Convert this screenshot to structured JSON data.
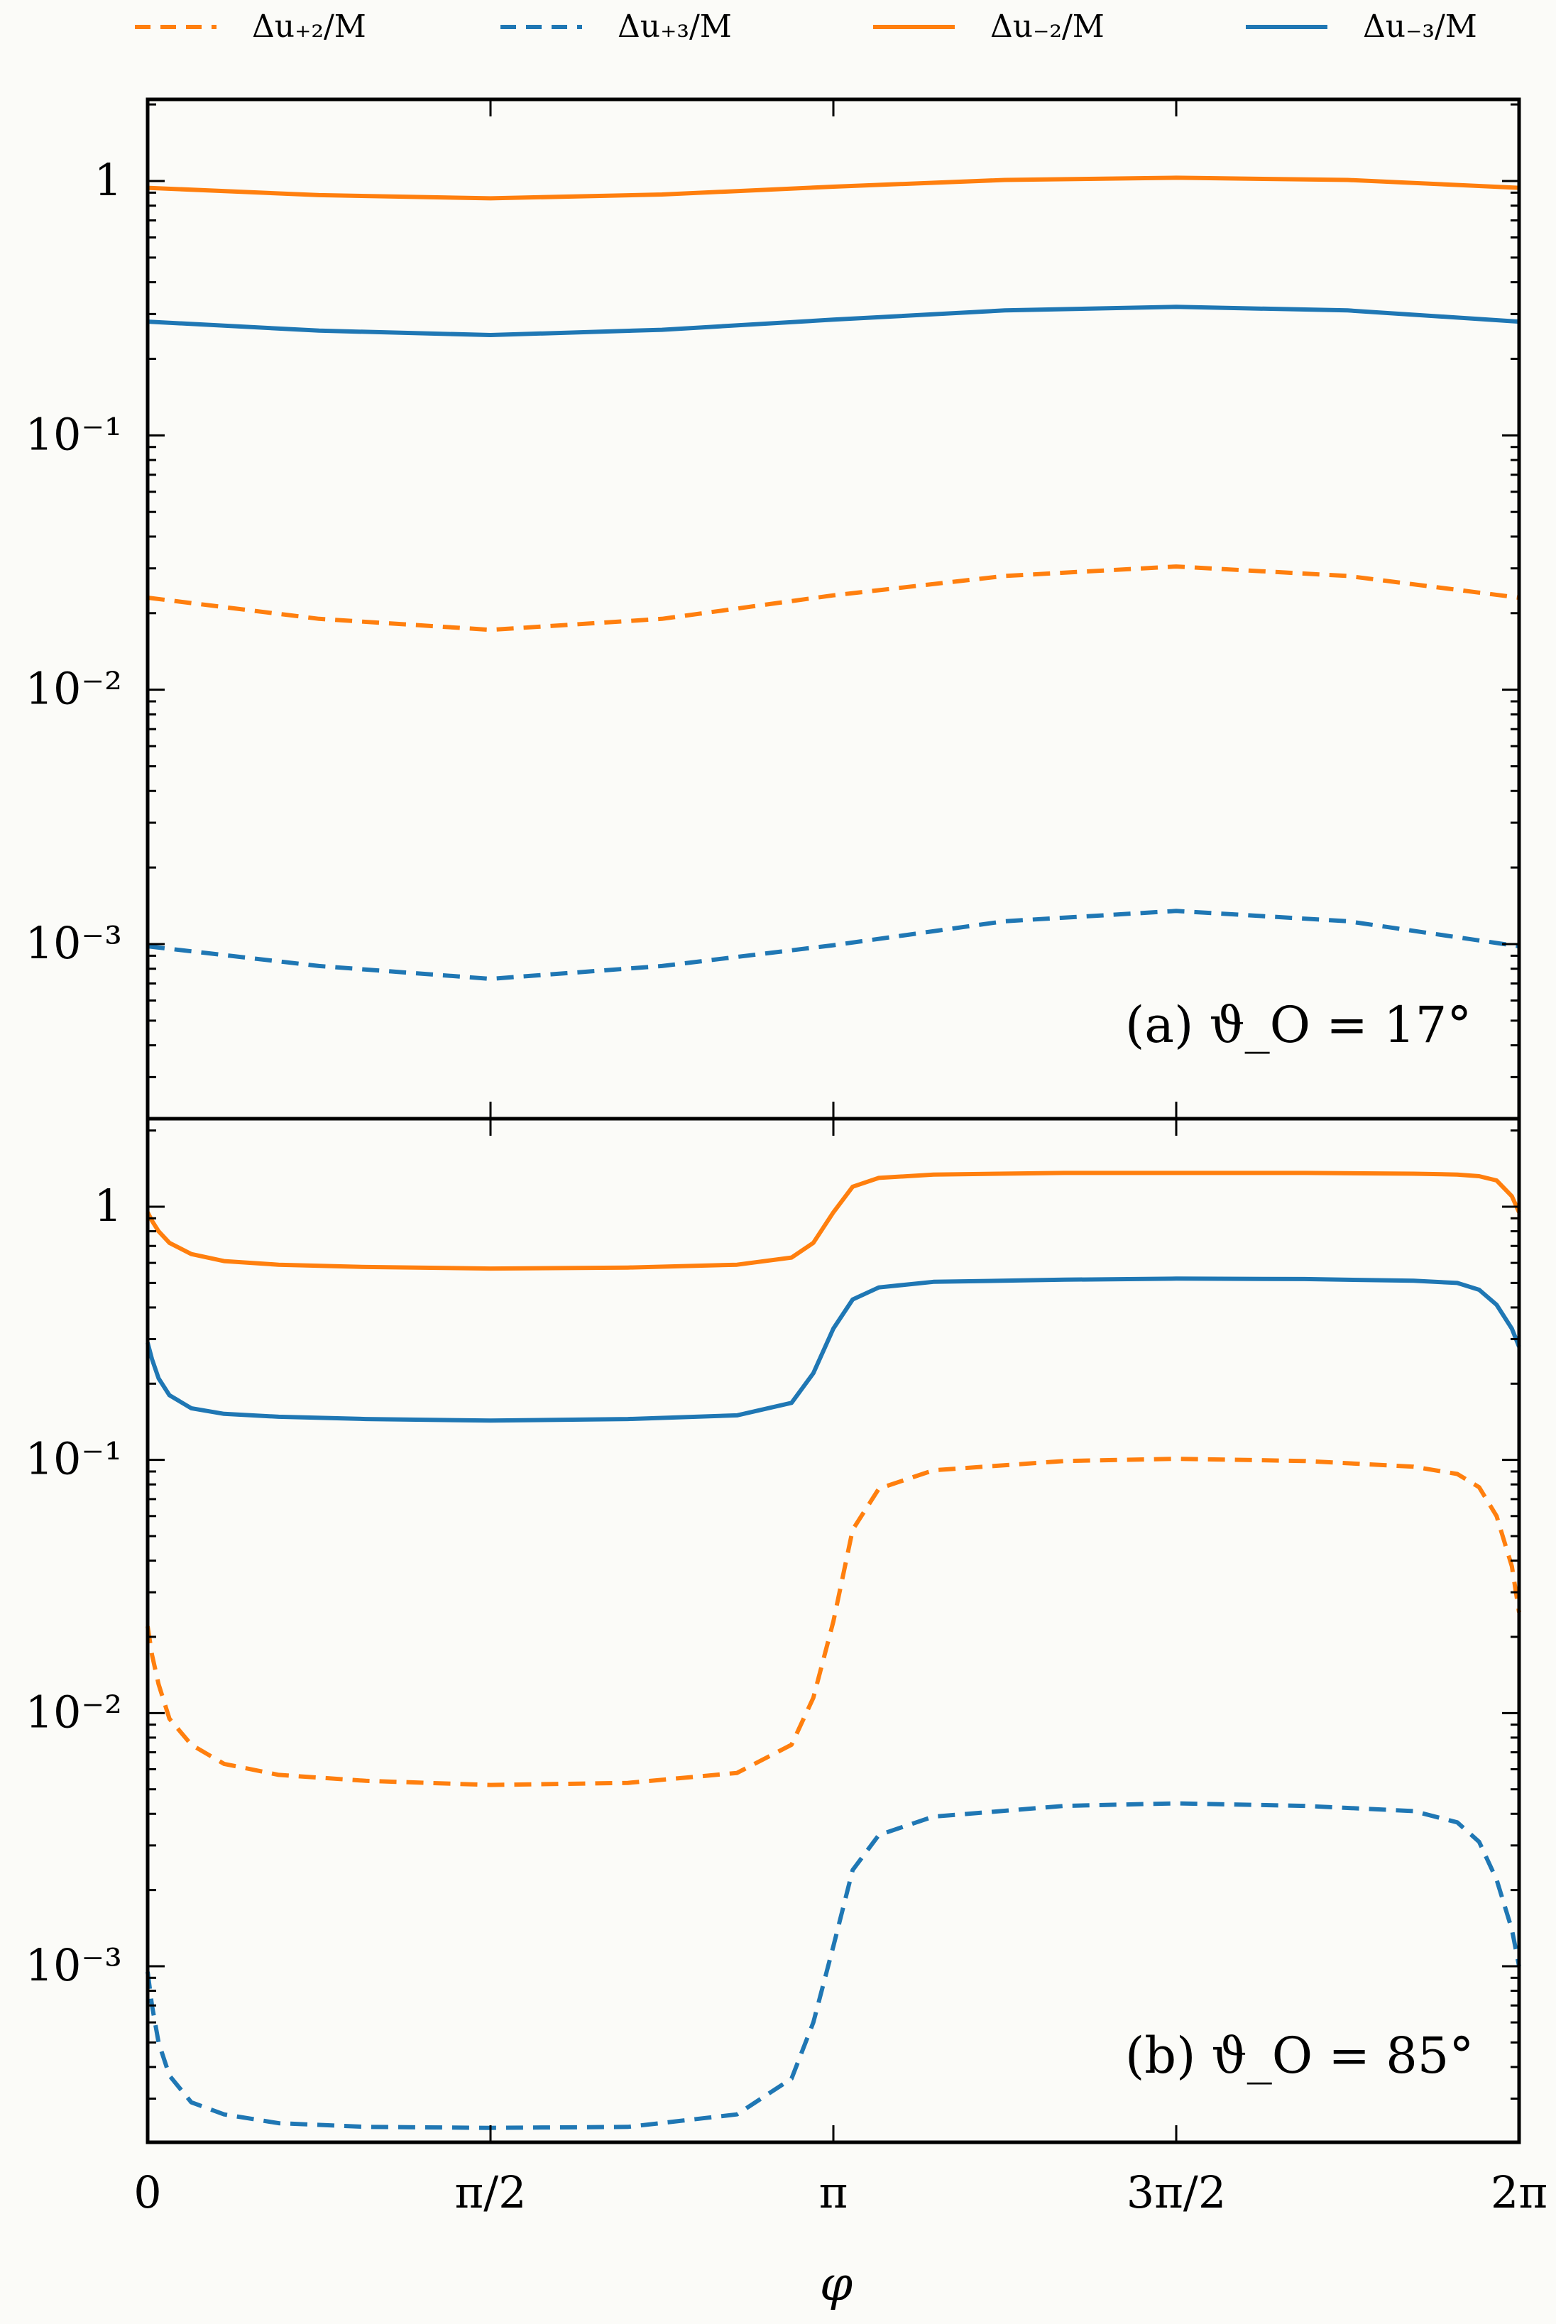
{
  "legend": {
    "placement": "top",
    "entries": [
      {
        "label": "Δu₊₂/M",
        "color": "#ff7f0e",
        "style": "dashed"
      },
      {
        "label": "Δu₊₃/M",
        "color": "#1f77b4",
        "style": "dashed"
      },
      {
        "label": "Δu₋₂/M",
        "color": "#ff7f0e",
        "style": "solid"
      },
      {
        "label": "Δu₋₃/M",
        "color": "#1f77b4",
        "style": "solid"
      }
    ]
  },
  "xlabel": "φ",
  "x_ticks": [
    "0",
    "π/2",
    "π",
    "3π/2",
    "2π"
  ],
  "y_ticks": [
    "1",
    "10⁻¹",
    "10⁻²",
    "10⁻³"
  ],
  "colors": {
    "orange": "#ff7f0e",
    "blue": "#1f77b4",
    "axes": "#000000"
  },
  "chart_data": [
    {
      "type": "line",
      "annotation": "(a) ϑ_O = 17°",
      "yscale": "log",
      "ylim": [
        0.0002,
        2.2
      ],
      "xlim": [
        0,
        6.2832
      ],
      "x": [
        0,
        0.7854,
        1.5708,
        2.3562,
        3.1416,
        3.927,
        4.7124,
        5.4978,
        6.2832
      ],
      "series": [
        {
          "name": "Δu₊₂/M",
          "style": "dashed",
          "color": "#ff7f0e",
          "values": [
            0.023,
            0.019,
            0.0172,
            0.019,
            0.0235,
            0.028,
            0.0305,
            0.028,
            0.023
          ]
        },
        {
          "name": "Δu₊₃/M",
          "style": "dashed",
          "color": "#1f77b4",
          "values": [
            0.00098,
            0.00082,
            0.00073,
            0.00082,
            0.00099,
            0.00123,
            0.00135,
            0.00123,
            0.00098
          ]
        },
        {
          "name": "Δu₋₂/M",
          "style": "solid",
          "color": "#ff7f0e",
          "values": [
            0.94,
            0.88,
            0.855,
            0.885,
            0.95,
            1.01,
            1.03,
            1.01,
            0.94
          ]
        },
        {
          "name": "Δu₋₃/M",
          "style": "solid",
          "color": "#1f77b4",
          "values": [
            0.28,
            0.258,
            0.248,
            0.26,
            0.285,
            0.31,
            0.32,
            0.31,
            0.28
          ]
        }
      ]
    },
    {
      "type": "line",
      "annotation": "(b) ϑ_O = 85°",
      "yscale": "log",
      "ylim": [
        0.0002,
        2.2
      ],
      "xlim": [
        0,
        6.2832
      ],
      "x": [
        0,
        0.02,
        0.05,
        0.1,
        0.2,
        0.35,
        0.6,
        1.0,
        1.5708,
        2.2,
        2.7,
        2.95,
        3.05,
        3.1416,
        3.23,
        3.35,
        3.6,
        4.2,
        4.7124,
        5.3,
        5.8,
        6.0,
        6.1,
        6.18,
        6.25,
        6.2832
      ],
      "series": [
        {
          "name": "Δu₊₂/M",
          "style": "dashed",
          "color": "#ff7f0e",
          "values": [
            0.022,
            0.017,
            0.013,
            0.0095,
            0.0075,
            0.0063,
            0.0057,
            0.0054,
            0.0052,
            0.0053,
            0.0058,
            0.0075,
            0.0115,
            0.023,
            0.053,
            0.077,
            0.091,
            0.099,
            0.101,
            0.099,
            0.094,
            0.088,
            0.078,
            0.06,
            0.038,
            0.025
          ]
        },
        {
          "name": "Δu₊₃/M",
          "style": "dashed",
          "color": "#1f77b4",
          "values": [
            0.00095,
            0.0007,
            0.0005,
            0.00037,
            0.00029,
            0.00026,
            0.00024,
            0.000232,
            0.00023,
            0.000232,
            0.00026,
            0.00036,
            0.0006,
            0.0012,
            0.0024,
            0.0033,
            0.0039,
            0.0043,
            0.0044,
            0.0043,
            0.0041,
            0.0037,
            0.0031,
            0.0022,
            0.0014,
            0.001
          ]
        },
        {
          "name": "Δu₋₂/M",
          "style": "solid",
          "color": "#ff7f0e",
          "values": [
            0.95,
            0.88,
            0.8,
            0.72,
            0.65,
            0.61,
            0.59,
            0.578,
            0.57,
            0.575,
            0.59,
            0.63,
            0.72,
            0.95,
            1.2,
            1.3,
            1.34,
            1.36,
            1.36,
            1.36,
            1.35,
            1.34,
            1.32,
            1.27,
            1.1,
            0.95
          ]
        },
        {
          "name": "Δu₋₃/M",
          "style": "solid",
          "color": "#1f77b4",
          "values": [
            0.29,
            0.25,
            0.21,
            0.18,
            0.16,
            0.152,
            0.148,
            0.145,
            0.143,
            0.145,
            0.15,
            0.168,
            0.22,
            0.33,
            0.43,
            0.48,
            0.505,
            0.515,
            0.52,
            0.518,
            0.51,
            0.5,
            0.47,
            0.41,
            0.33,
            0.28
          ]
        }
      ]
    }
  ]
}
